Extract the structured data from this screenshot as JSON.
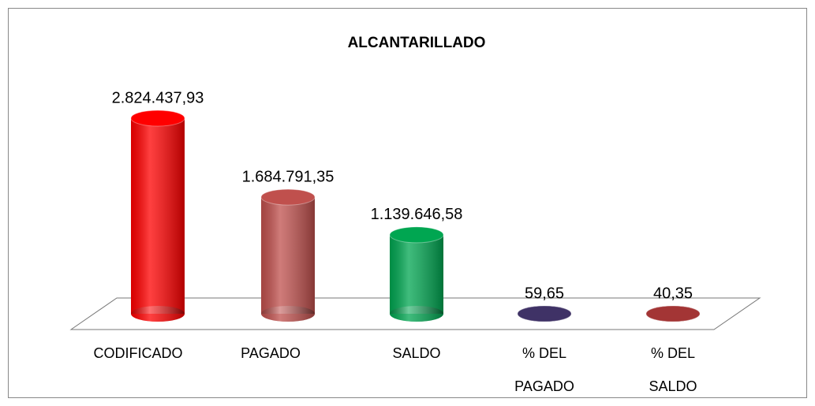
{
  "chart_data": {
    "type": "bar3d",
    "title": "ALCANTARILLADO",
    "categories": [
      "CODIFICADO",
      "PAGADO",
      "SALDO",
      "% DEL PAGADO",
      "% DEL SALDO"
    ],
    "values": [
      2824437.93,
      1684791.35,
      1139646.58,
      59.65,
      40.35
    ],
    "value_labels": [
      "2.824.437,93",
      "1.684.791,35",
      "1.139.646,58",
      "59,65",
      "40,35"
    ],
    "colors": [
      "#ff0000",
      "#c0504d",
      "#00a651",
      "#3f3266",
      "#a33535"
    ]
  }
}
